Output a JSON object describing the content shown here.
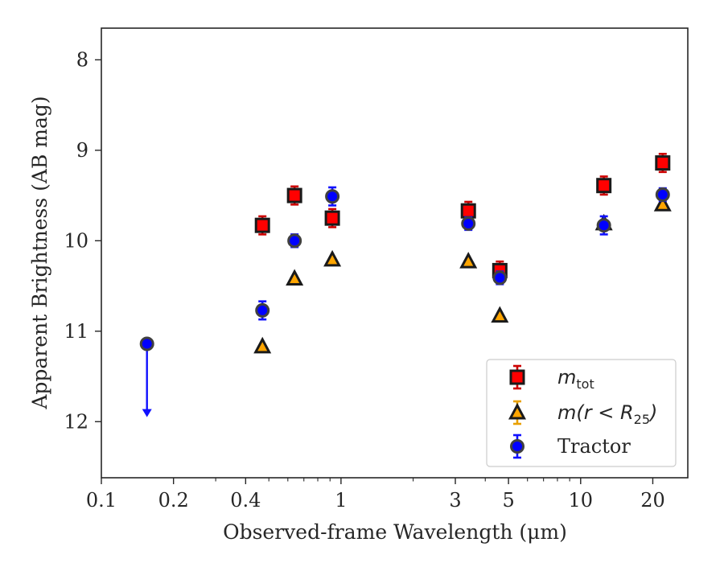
{
  "chart_data": {
    "type": "scatter",
    "title": "",
    "xlabel": "Observed-frame Wavelength (μm)",
    "ylabel": "Apparent Brightness (AB mag)",
    "xscale": "log",
    "xlim": [
      0.1,
      28
    ],
    "ylim": [
      12.62,
      7.65
    ],
    "y_inverted": true,
    "x_ticks": [
      0.1,
      0.2,
      0.4,
      1,
      3,
      5,
      10,
      20
    ],
    "x_tick_labels": [
      "0.1",
      "0.2",
      "0.4",
      "1",
      "3",
      "5",
      "10",
      "20"
    ],
    "y_ticks": [
      8,
      9,
      10,
      11,
      12
    ],
    "y_tick_labels": [
      "8",
      "9",
      "10",
      "11",
      "12"
    ],
    "grid": false,
    "legend_position": "bottom-right",
    "series": [
      {
        "name": "m_tot",
        "legend_label": {
          "main": "m",
          "sub": "tot",
          "rest": ""
        },
        "marker": "square",
        "color": "#ff0000",
        "edge_color": "#1a1a1a",
        "error_color": "#cc0000",
        "x": [
          0.47,
          0.64,
          0.92,
          3.4,
          4.6,
          12.5,
          22
        ],
        "y": [
          9.83,
          9.5,
          9.75,
          9.67,
          10.33,
          9.39,
          9.14
        ],
        "yerr": [
          0.1,
          0.1,
          0.1,
          0.1,
          0.1,
          0.1,
          0.1
        ]
      },
      {
        "name": "m(r < R25)",
        "legend_label": {
          "main": "m(r < R",
          "sub": "25",
          "rest": ")"
        },
        "marker": "triangle",
        "color": "#ffa500",
        "edge_color": "#1a1a1a",
        "error_color": "#e8a000",
        "x": [
          0.47,
          0.64,
          0.92,
          3.4,
          4.6,
          12.5,
          22
        ],
        "y": [
          11.17,
          10.42,
          10.21,
          10.23,
          10.83,
          9.81,
          9.6
        ],
        "yerr": [
          0.0,
          0.0,
          0.0,
          0.0,
          0.0,
          0.0,
          0.0
        ]
      },
      {
        "name": "Tractor",
        "legend_label": {
          "main": "Tractor",
          "sub": "",
          "rest": ""
        },
        "marker": "circle",
        "color": "#0000ff",
        "edge_color": "#404040",
        "error_color": "#1010ff",
        "x": [
          0.47,
          0.64,
          0.92,
          3.4,
          4.6,
          12.5,
          22
        ],
        "y": [
          10.77,
          10.0,
          9.51,
          9.81,
          10.41,
          9.83,
          9.49
        ],
        "yerr": [
          0.1,
          0.07,
          0.1,
          0.07,
          0.07,
          0.1,
          0.07
        ]
      }
    ],
    "upper_limits": [
      {
        "series": "Tractor",
        "x": 0.155,
        "y": 11.14,
        "arrow_to": 11.95,
        "color": "#1010ff"
      }
    ]
  }
}
